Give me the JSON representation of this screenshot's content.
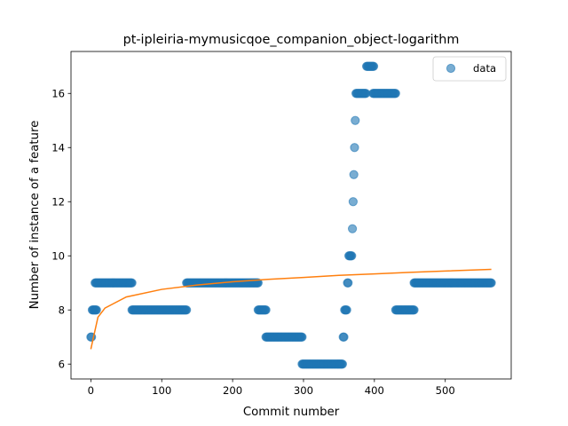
{
  "chart_data": {
    "type": "scatter",
    "title": "pt-ipleiria-mymusicqoe_companion_object-logarithm",
    "xlabel": "Commit number",
    "ylabel": "Number of instance of a feature",
    "xlim": [
      -28,
      593
    ],
    "ylim": [
      5.45,
      17.55
    ],
    "xticks": [
      0,
      100,
      200,
      300,
      400,
      500
    ],
    "yticks": [
      6,
      8,
      10,
      12,
      14,
      16
    ],
    "grid": false,
    "legend": {
      "location": "upper right",
      "entries": [
        "data"
      ]
    },
    "colors": {
      "data": "#1f77b4",
      "fit": "#ff7f0e"
    },
    "series": [
      {
        "name": "data",
        "type": "scatter",
        "runs": [
          {
            "x_start": 0,
            "x_end": 1,
            "y": 7
          },
          {
            "x_start": 2,
            "x_end": 8,
            "y": 8
          },
          {
            "x_start": 6,
            "x_end": 58,
            "y": 9
          },
          {
            "x_start": 58,
            "x_end": 135,
            "y": 8
          },
          {
            "x_start": 135,
            "x_end": 236,
            "y": 9
          },
          {
            "x_start": 236,
            "x_end": 247,
            "y": 8
          },
          {
            "x_start": 247,
            "x_end": 298,
            "y": 7
          },
          {
            "x_start": 298,
            "x_end": 355,
            "y": 6
          },
          {
            "x_start": 356,
            "x_end": 357,
            "y": 7
          },
          {
            "x_start": 358,
            "x_end": 361,
            "y": 8
          },
          {
            "x_start": 362,
            "x_end": 363,
            "y": 9
          },
          {
            "x_start": 364,
            "x_end": 368,
            "y": 10
          },
          {
            "x_start": 369,
            "x_end": 369,
            "y": 11
          },
          {
            "x_start": 370,
            "x_end": 370,
            "y": 12
          },
          {
            "x_start": 371,
            "x_end": 371,
            "y": 13
          },
          {
            "x_start": 372,
            "x_end": 372,
            "y": 14
          },
          {
            "x_start": 373,
            "x_end": 373,
            "y": 15
          },
          {
            "x_start": 374,
            "x_end": 388,
            "y": 16
          },
          {
            "x_start": 389,
            "x_end": 399,
            "y": 17
          },
          {
            "x_start": 398,
            "x_end": 430,
            "y": 16
          },
          {
            "x_start": 430,
            "x_end": 456,
            "y": 8
          },
          {
            "x_start": 456,
            "x_end": 565,
            "y": 9
          }
        ]
      },
      {
        "name": "",
        "type": "line",
        "model": "logarithmic",
        "x": [
          0,
          10,
          20,
          50,
          100,
          150,
          200,
          250,
          300,
          350,
          400,
          450,
          500,
          565
        ],
        "y": [
          6.55,
          7.73,
          8.07,
          8.48,
          8.76,
          8.92,
          9.04,
          9.13,
          9.2,
          9.28,
          9.33,
          9.39,
          9.44,
          9.5
        ]
      }
    ]
  }
}
